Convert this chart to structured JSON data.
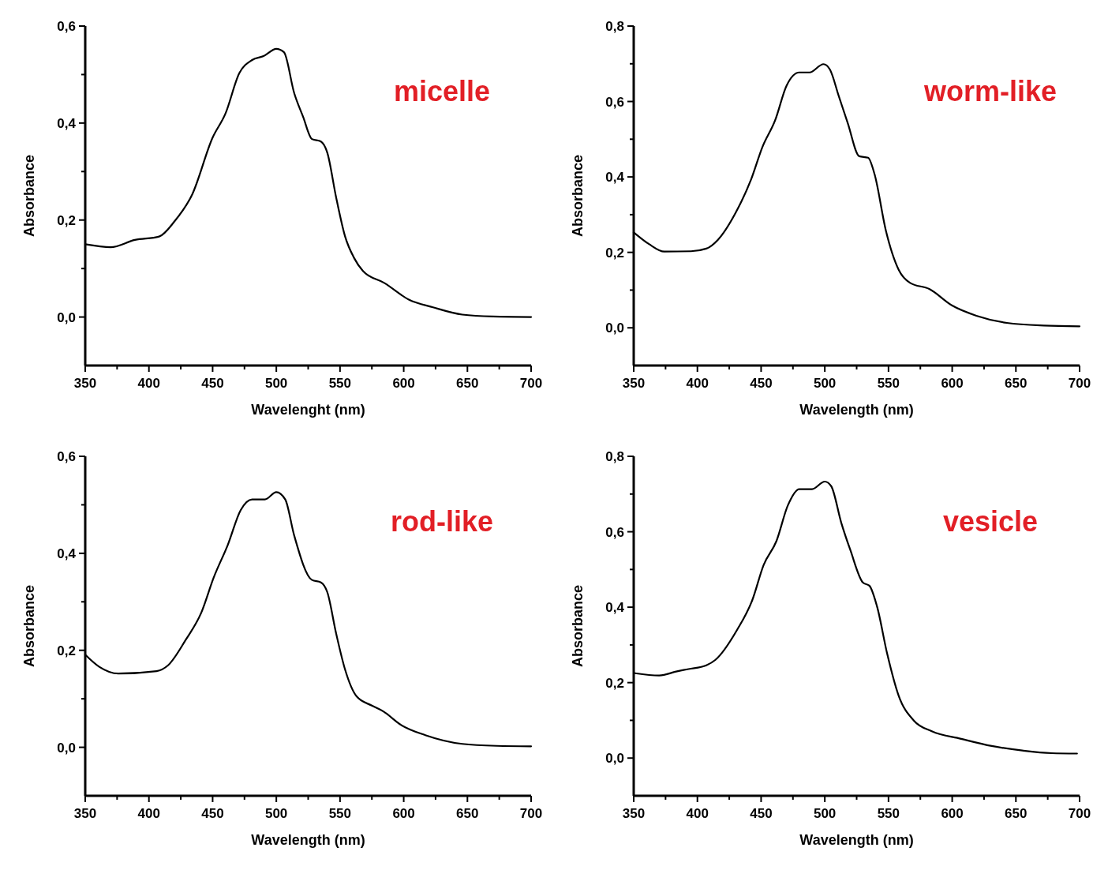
{
  "chart_data": [
    {
      "type": "line",
      "xlabel": "Wavelenght (nm)",
      "ylabel": "Absorbance",
      "annotations": [
        "micelle"
      ],
      "xlim": [
        350,
        700
      ],
      "ylim": [
        -0.1,
        0.6
      ],
      "xticks": [
        350,
        {
          "value": 375,
          "label": null
        },
        400,
        {
          "value": 425,
          "label": null
        },
        450,
        {
          "value": 475,
          "label": null
        },
        500,
        {
          "value": 525,
          "label": null
        },
        550,
        {
          "value": 575,
          "label": null
        },
        600,
        {
          "value": 625,
          "label": null
        },
        650,
        {
          "value": 675,
          "label": null
        },
        700
      ],
      "yticks": [
        {
          "value": 0,
          "label": "0,0"
        },
        {
          "value": 0.1,
          "label": null
        },
        {
          "value": 0.2,
          "label": "0,2"
        },
        {
          "value": 0.3,
          "label": null
        },
        {
          "value": 0.4,
          "label": "0,4"
        },
        {
          "value": 0.5,
          "label": null
        },
        {
          "value": 0.6,
          "label": "0,6"
        }
      ],
      "grid": false,
      "marker": "none",
      "line_style": "solid",
      "series": [
        {
          "color": "#000000",
          "x": [
            350,
            370,
            389,
            408,
            420,
            434,
            450,
            460,
            471,
            481,
            490,
            500,
            506,
            514,
            521,
            528,
            535,
            540,
            547,
            554,
            561,
            568,
            585,
            604,
            623,
            646,
            670,
            700
          ],
          "values": [
            0.15,
            0.144,
            0.159,
            0.166,
            0.197,
            0.253,
            0.37,
            0.419,
            0.503,
            0.53,
            0.538,
            0.553,
            0.546,
            0.462,
            0.413,
            0.367,
            0.362,
            0.339,
            0.246,
            0.166,
            0.122,
            0.095,
            0.07,
            0.036,
            0.02,
            0.005,
            0.001,
            0.0
          ]
        }
      ]
    },
    {
      "type": "line",
      "xlabel": "Wavelength (nm)",
      "ylabel": "Absorbance",
      "annotations": [
        "worm-like"
      ],
      "xlim": [
        350,
        700
      ],
      "ylim": [
        -0.1,
        0.8
      ],
      "xticks": [
        350,
        {
          "value": 375,
          "label": null
        },
        400,
        {
          "value": 425,
          "label": null
        },
        450,
        {
          "value": 475,
          "label": null
        },
        500,
        {
          "value": 525,
          "label": null
        },
        550,
        {
          "value": 575,
          "label": null
        },
        600,
        {
          "value": 625,
          "label": null
        },
        650,
        {
          "value": 675,
          "label": null
        },
        700
      ],
      "yticks": [
        {
          "value": 0,
          "label": "0,0"
        },
        {
          "value": 0.1,
          "label": null
        },
        {
          "value": 0.2,
          "label": "0,2"
        },
        {
          "value": 0.3,
          "label": null
        },
        {
          "value": 0.4,
          "label": "0,4"
        },
        {
          "value": 0.5,
          "label": null
        },
        {
          "value": 0.6,
          "label": "0,6"
        },
        {
          "value": 0.7,
          "label": null
        },
        {
          "value": 0.8,
          "label": "0,8"
        }
      ],
      "grid": false,
      "marker": "none",
      "line_style": "solid",
      "series": [
        {
          "color": "#000000",
          "x": [
            350,
            362,
            374,
            395,
            407,
            416,
            430,
            442,
            451,
            461,
            470,
            480,
            488,
            499,
            504,
            511,
            518,
            527,
            534,
            539,
            548,
            558,
            567,
            582,
            600,
            619,
            643,
            672,
            700
          ],
          "values": [
            0.253,
            0.222,
            0.202,
            0.203,
            0.21,
            0.233,
            0.305,
            0.392,
            0.479,
            0.55,
            0.642,
            0.677,
            0.677,
            0.699,
            0.685,
            0.614,
            0.543,
            0.455,
            0.451,
            0.408,
            0.257,
            0.154,
            0.119,
            0.103,
            0.059,
            0.032,
            0.013,
            0.006,
            0.004
          ]
        }
      ]
    },
    {
      "type": "line",
      "xlabel": "Wavelength (nm)",
      "ylabel": "Absorbance",
      "annotations": [
        "rod-like"
      ],
      "xlim": [
        350,
        700
      ],
      "ylim": [
        -0.1,
        0.6
      ],
      "xticks": [
        350,
        {
          "value": 375,
          "label": null
        },
        400,
        {
          "value": 425,
          "label": null
        },
        450,
        {
          "value": 475,
          "label": null
        },
        500,
        {
          "value": 525,
          "label": null
        },
        550,
        {
          "value": 575,
          "label": null
        },
        600,
        {
          "value": 625,
          "label": null
        },
        650,
        {
          "value": 675,
          "label": null
        },
        700
      ],
      "yticks": [
        {
          "value": 0,
          "label": "0,0"
        },
        {
          "value": 0.1,
          "label": null
        },
        {
          "value": 0.2,
          "label": "0,2"
        },
        {
          "value": 0.3,
          "label": null
        },
        {
          "value": 0.4,
          "label": "0,4"
        },
        {
          "value": 0.5,
          "label": null
        },
        {
          "value": 0.6,
          "label": "0,6"
        }
      ],
      "grid": false,
      "marker": "none",
      "line_style": "solid",
      "series": [
        {
          "color": "#000000",
          "x": [
            350,
            361,
            376,
            406,
            415,
            429,
            441,
            451,
            462,
            472,
            481,
            491,
            500,
            507,
            514,
            528,
            535,
            540,
            547,
            554,
            563,
            575,
            584,
            598,
            617,
            646,
            673,
            700
          ],
          "values": [
            0.191,
            0.166,
            0.152,
            0.157,
            0.169,
            0.222,
            0.277,
            0.351,
            0.418,
            0.489,
            0.511,
            0.511,
            0.526,
            0.511,
            0.437,
            0.345,
            0.34,
            0.32,
            0.234,
            0.16,
            0.105,
            0.086,
            0.074,
            0.046,
            0.025,
            0.007,
            0.003,
            0.002
          ]
        }
      ]
    },
    {
      "type": "line",
      "xlabel": "Wavelength (nm)",
      "ylabel": "Absorbance",
      "annotations": [
        "vesicle"
      ],
      "xlim": [
        350,
        700
      ],
      "ylim": [
        -0.1,
        0.8
      ],
      "xticks": [
        350,
        {
          "value": 375,
          "label": null
        },
        400,
        {
          "value": 425,
          "label": null
        },
        450,
        {
          "value": 475,
          "label": null
        },
        500,
        {
          "value": 525,
          "label": null
        },
        550,
        {
          "value": 575,
          "label": null
        },
        600,
        {
          "value": 625,
          "label": null
        },
        650,
        {
          "value": 675,
          "label": null
        },
        700
      ],
      "yticks": [
        {
          "value": 0,
          "label": "0,0"
        },
        {
          "value": 0.1,
          "label": null
        },
        {
          "value": 0.2,
          "label": "0,2"
        },
        {
          "value": 0.3,
          "label": null
        },
        {
          "value": 0.4,
          "label": "0,4"
        },
        {
          "value": 0.5,
          "label": null
        },
        {
          "value": 0.6,
          "label": "0,6"
        },
        {
          "value": 0.7,
          "label": null
        },
        {
          "value": 0.8,
          "label": "0,8"
        }
      ],
      "grid": false,
      "marker": "none",
      "line_style": "solid",
      "series": [
        {
          "color": "#000000",
          "x": [
            351,
            370,
            384,
            393,
            407,
            414,
            431,
            443,
            452,
            462,
            471,
            480,
            490,
            500,
            505,
            513,
            520,
            530,
            535,
            541,
            549,
            558,
            570,
            584,
            607,
            631,
            655,
            678,
            698
          ],
          "values": [
            0.225,
            0.219,
            0.23,
            0.236,
            0.246,
            0.26,
            0.339,
            0.418,
            0.512,
            0.575,
            0.67,
            0.713,
            0.713,
            0.733,
            0.721,
            0.623,
            0.552,
            0.465,
            0.457,
            0.402,
            0.276,
            0.165,
            0.099,
            0.071,
            0.051,
            0.032,
            0.02,
            0.013,
            0.012
          ]
        }
      ]
    }
  ]
}
